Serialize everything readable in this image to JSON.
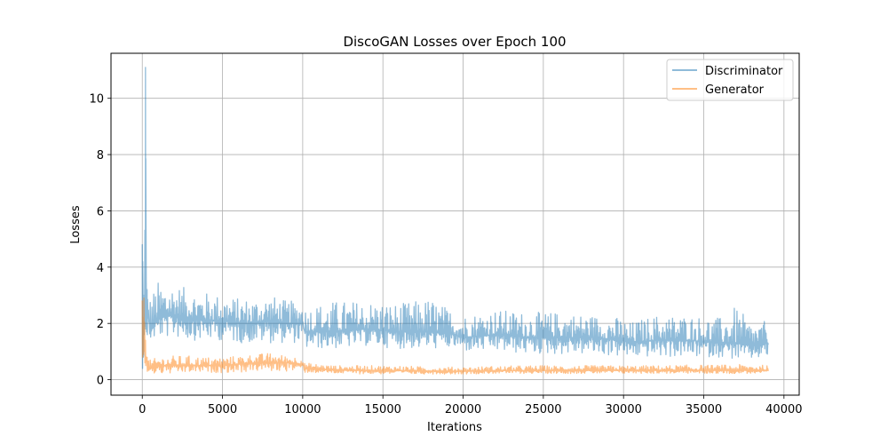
{
  "chart_data": {
    "type": "line",
    "title": "DiscoGAN Losses over Epoch 100",
    "xlabel": "Iterations",
    "ylabel": "Losses",
    "xlim": [
      -1950,
      40950
    ],
    "ylim": [
      -0.55,
      11.6
    ],
    "xticks": [
      0,
      5000,
      10000,
      15000,
      20000,
      25000,
      30000,
      35000,
      40000
    ],
    "xtick_labels": [
      "0",
      "5000",
      "10000",
      "15000",
      "20000",
      "25000",
      "30000",
      "35000",
      "40000"
    ],
    "yticks": [
      0,
      2,
      4,
      6,
      8,
      10
    ],
    "ytick_labels": [
      "0",
      "2",
      "4",
      "6",
      "8",
      "10"
    ],
    "grid": true,
    "legend_position": "top-right",
    "series": [
      {
        "name": "Discriminator",
        "color": "#1f77b4",
        "x": [
          0,
          50,
          100,
          150,
          200,
          250,
          300,
          500,
          1000,
          2000,
          3000,
          4000,
          5000,
          6000,
          7000,
          8000,
          9000,
          10000,
          10100,
          12000,
          14000,
          16000,
          18000,
          19500,
          20000,
          22000,
          24000,
          26000,
          28000,
          30000,
          30200,
          32000,
          34000,
          36000,
          37000,
          38000,
          39000
        ],
        "values": [
          4.7,
          1.5,
          2.2,
          2.8,
          11.1,
          2.5,
          2.3,
          1.8,
          2.2,
          2.3,
          2.2,
          2.1,
          2.1,
          2.0,
          2.0,
          2.1,
          2.0,
          2.0,
          1.7,
          1.7,
          1.8,
          1.7,
          1.7,
          1.6,
          1.5,
          1.6,
          1.5,
          1.5,
          1.5,
          1.4,
          1.3,
          1.4,
          1.4,
          1.3,
          1.3,
          1.2,
          1.3
        ],
        "low": [
          0.4,
          0.8,
          1.6,
          1.9,
          1.8,
          1.7,
          1.6,
          1.4,
          1.5,
          1.5,
          1.4,
          1.4,
          1.4,
          1.3,
          1.3,
          1.3,
          1.3,
          1.3,
          1.1,
          1.1,
          1.2,
          1.1,
          1.1,
          1.1,
          1.0,
          1.0,
          0.9,
          0.9,
          0.9,
          0.8,
          0.8,
          0.8,
          0.8,
          0.8,
          0.7,
          0.7,
          0.8
        ],
        "high": [
          4.8,
          3.0,
          3.0,
          3.5,
          11.1,
          3.4,
          3.2,
          3.0,
          3.5,
          3.4,
          3.2,
          3.1,
          3.0,
          2.9,
          2.9,
          3.0,
          2.8,
          2.8,
          2.6,
          2.8,
          2.8,
          2.7,
          2.9,
          2.4,
          2.3,
          2.5,
          2.4,
          2.4,
          2.3,
          2.2,
          2.0,
          2.3,
          2.3,
          2.2,
          2.6,
          2.0,
          2.1
        ]
      },
      {
        "name": "Generator",
        "color": "#ff7f0e",
        "x": [
          0,
          50,
          100,
          150,
          200,
          300,
          500,
          1000,
          2000,
          3000,
          4000,
          5000,
          6000,
          7000,
          8000,
          9000,
          10000,
          10100,
          12000,
          14000,
          16000,
          18000,
          20000,
          22000,
          24000,
          26000,
          28000,
          30000,
          32000,
          34000,
          36000,
          38000,
          39000
        ],
        "values": [
          2.0,
          1.5,
          2.4,
          1.2,
          0.9,
          0.5,
          0.4,
          0.5,
          0.5,
          0.5,
          0.5,
          0.5,
          0.55,
          0.6,
          0.6,
          0.6,
          0.55,
          0.4,
          0.35,
          0.33,
          0.32,
          0.3,
          0.3,
          0.32,
          0.32,
          0.33,
          0.33,
          0.33,
          0.33,
          0.33,
          0.33,
          0.33,
          0.33
        ],
        "low": [
          0.8,
          0.9,
          1.0,
          0.6,
          0.5,
          0.3,
          0.2,
          0.2,
          0.2,
          0.25,
          0.25,
          0.25,
          0.25,
          0.3,
          0.3,
          0.3,
          0.3,
          0.25,
          0.22,
          0.2,
          0.2,
          0.2,
          0.2,
          0.22,
          0.22,
          0.22,
          0.22,
          0.22,
          0.22,
          0.22,
          0.22,
          0.22,
          0.22
        ],
        "high": [
          2.8,
          2.2,
          2.9,
          1.8,
          1.4,
          0.8,
          0.7,
          0.8,
          0.85,
          0.85,
          0.8,
          0.8,
          0.85,
          0.9,
          0.95,
          0.85,
          0.8,
          0.6,
          0.5,
          0.5,
          0.5,
          0.45,
          0.45,
          0.48,
          0.5,
          0.5,
          0.5,
          0.5,
          0.5,
          0.52,
          0.52,
          0.55,
          0.5
        ]
      }
    ]
  }
}
